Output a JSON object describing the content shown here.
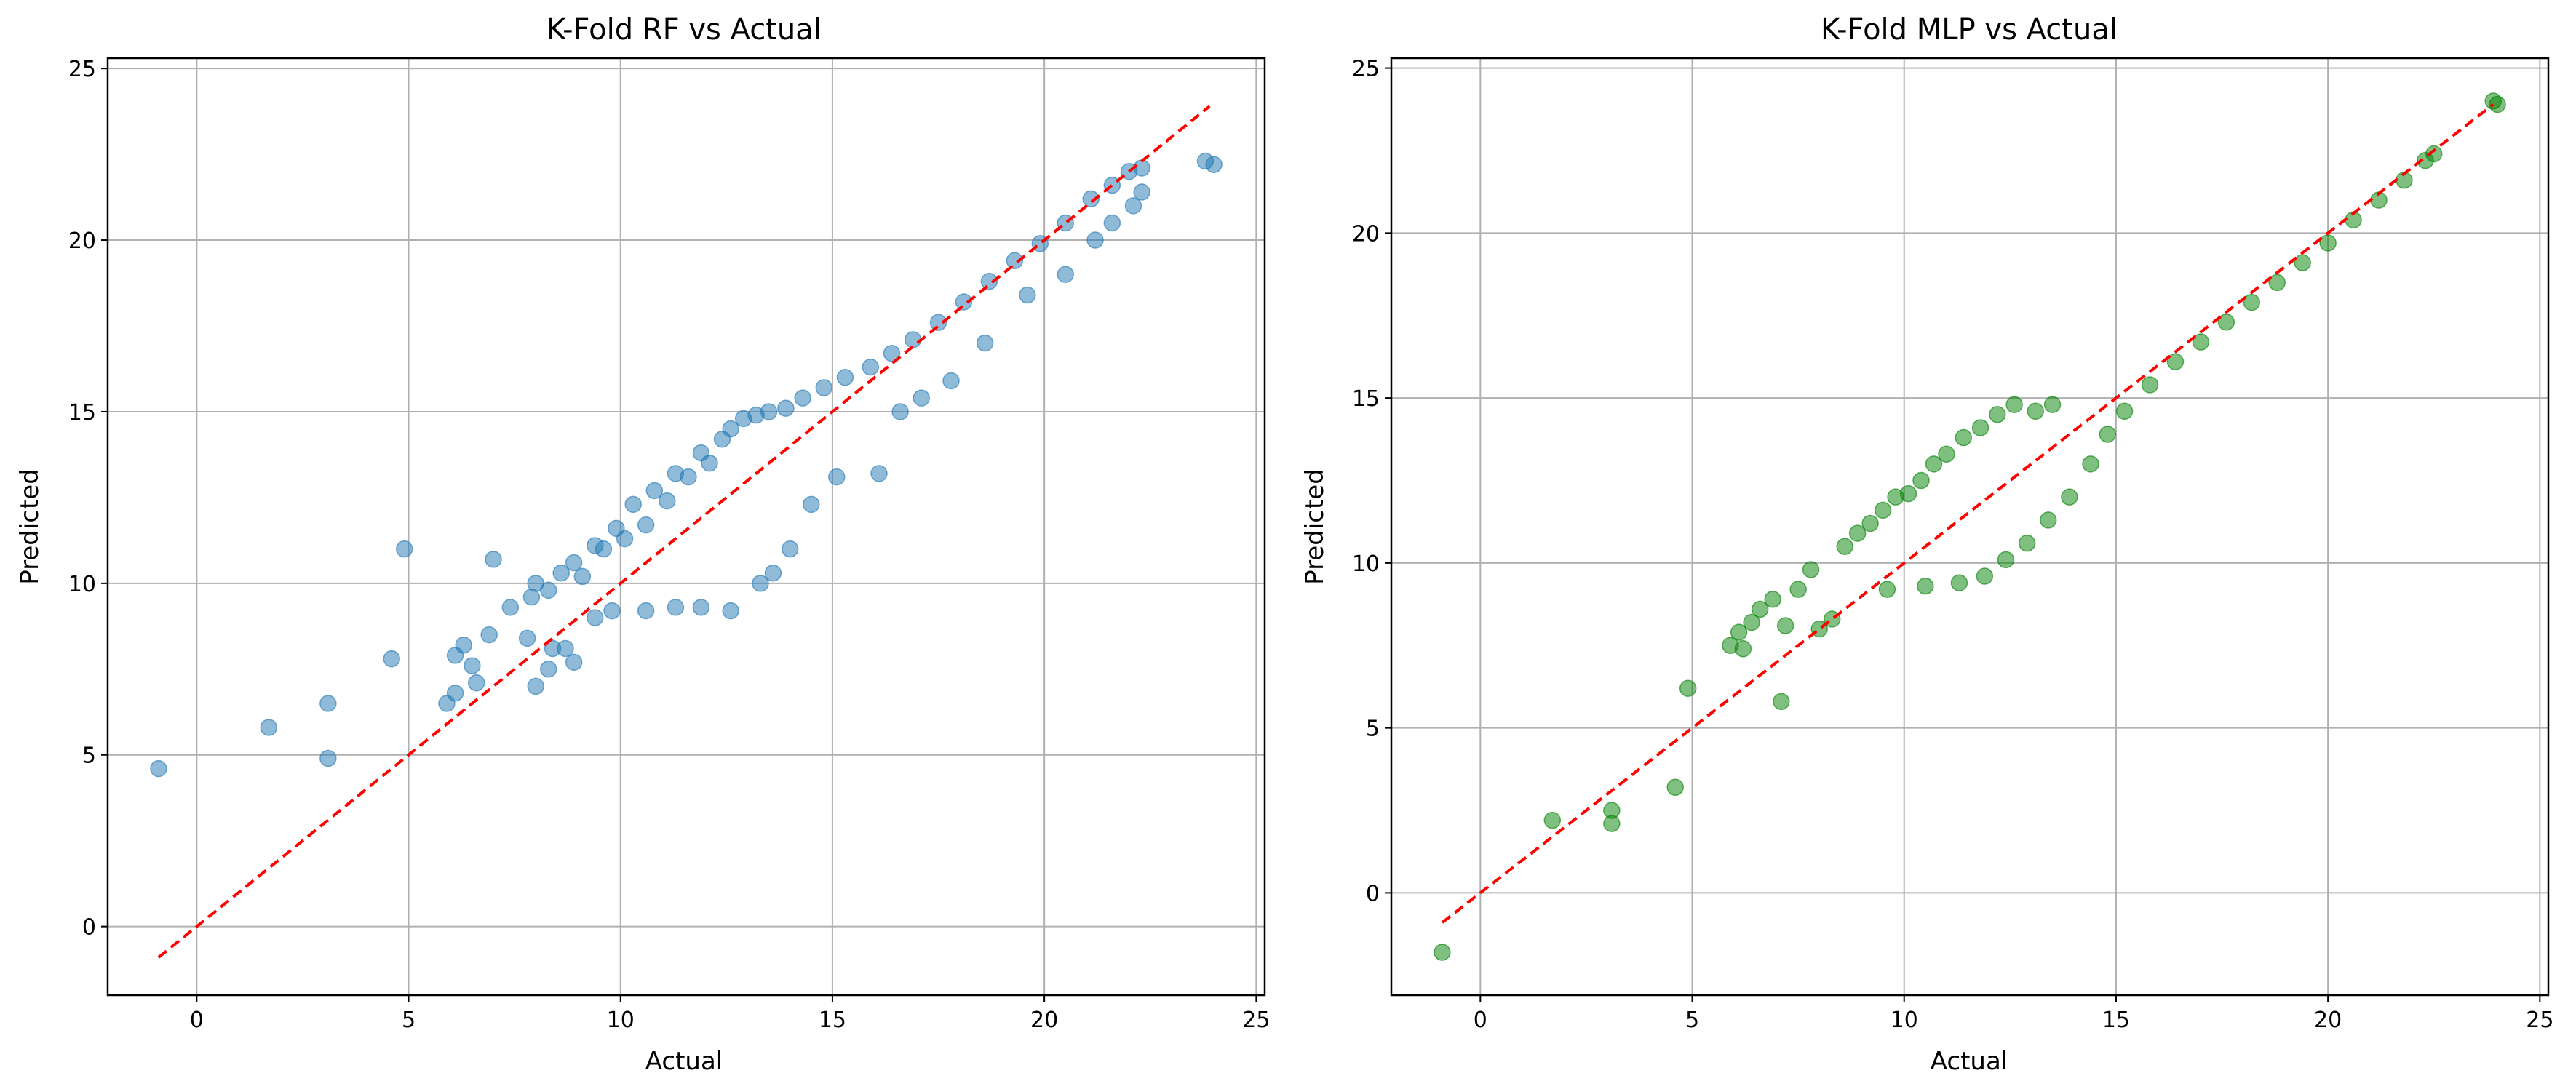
{
  "chart_data": [
    {
      "type": "scatter",
      "title": "K-Fold RF vs Actual",
      "xlabel": "Actual",
      "ylabel": "Predicted",
      "xlim": [
        -2.1,
        25.2
      ],
      "ylim": [
        -2.0,
        25.3
      ],
      "xticks": [
        0,
        5,
        10,
        15,
        20,
        25
      ],
      "yticks": [
        0,
        5,
        10,
        15,
        20,
        25
      ],
      "grid": true,
      "point_color": "#1f77b4",
      "point_alpha": 0.5,
      "reference_line": {
        "x": [
          -0.9,
          23.9
        ],
        "y": [
          -0.9,
          23.9
        ],
        "color": "#ff0000",
        "style": "dashed"
      },
      "points": [
        [
          -0.9,
          4.6
        ],
        [
          1.7,
          5.8
        ],
        [
          3.1,
          4.9
        ],
        [
          3.1,
          6.5
        ],
        [
          4.6,
          7.8
        ],
        [
          4.9,
          11.0
        ],
        [
          5.9,
          6.5
        ],
        [
          6.1,
          6.8
        ],
        [
          6.1,
          7.9
        ],
        [
          6.3,
          8.2
        ],
        [
          6.5,
          7.6
        ],
        [
          6.6,
          7.1
        ],
        [
          6.9,
          8.5
        ],
        [
          7.0,
          10.7
        ],
        [
          7.4,
          9.3
        ],
        [
          7.8,
          8.4
        ],
        [
          7.9,
          9.6
        ],
        [
          8.0,
          7.0
        ],
        [
          8.3,
          7.5
        ],
        [
          8.4,
          8.1
        ],
        [
          8.7,
          8.1
        ],
        [
          8.9,
          7.7
        ],
        [
          9.4,
          9.0
        ],
        [
          9.8,
          9.2
        ],
        [
          10.6,
          9.2
        ],
        [
          11.3,
          9.3
        ],
        [
          11.9,
          9.3
        ],
        [
          12.6,
          9.2
        ],
        [
          13.3,
          10.0
        ],
        [
          13.6,
          10.3
        ],
        [
          14.0,
          11.0
        ],
        [
          14.5,
          12.3
        ],
        [
          15.1,
          13.1
        ],
        [
          16.1,
          13.2
        ],
        [
          16.6,
          15.0
        ],
        [
          17.1,
          15.4
        ],
        [
          17.8,
          15.9
        ],
        [
          18.6,
          17.0
        ],
        [
          19.6,
          18.4
        ],
        [
          20.5,
          19.0
        ],
        [
          21.2,
          20.0
        ],
        [
          21.6,
          20.5
        ],
        [
          22.1,
          21.0
        ],
        [
          22.3,
          21.4
        ],
        [
          22.3,
          22.1
        ],
        [
          23.8,
          22.3
        ],
        [
          24.0,
          22.2
        ],
        [
          8.0,
          10.0
        ],
        [
          8.3,
          9.8
        ],
        [
          8.6,
          10.3
        ],
        [
          8.9,
          10.6
        ],
        [
          9.1,
          10.2
        ],
        [
          9.4,
          11.1
        ],
        [
          9.6,
          11.0
        ],
        [
          9.9,
          11.6
        ],
        [
          10.1,
          11.3
        ],
        [
          10.3,
          12.3
        ],
        [
          10.6,
          11.7
        ],
        [
          10.8,
          12.7
        ],
        [
          11.1,
          12.4
        ],
        [
          11.3,
          13.2
        ],
        [
          11.6,
          13.1
        ],
        [
          11.9,
          13.8
        ],
        [
          12.1,
          13.5
        ],
        [
          12.4,
          14.2
        ],
        [
          12.6,
          14.5
        ],
        [
          12.9,
          14.8
        ],
        [
          13.2,
          14.9
        ],
        [
          13.5,
          15.0
        ],
        [
          13.9,
          15.1
        ],
        [
          14.3,
          15.4
        ],
        [
          14.8,
          15.7
        ],
        [
          15.3,
          16.0
        ],
        [
          15.9,
          16.3
        ],
        [
          16.4,
          16.7
        ],
        [
          16.9,
          17.1
        ],
        [
          17.5,
          17.6
        ],
        [
          18.1,
          18.2
        ],
        [
          18.7,
          18.8
        ],
        [
          19.3,
          19.4
        ],
        [
          19.9,
          19.9
        ],
        [
          20.5,
          20.5
        ],
        [
          21.1,
          21.2
        ],
        [
          21.6,
          21.6
        ],
        [
          22.0,
          22.0
        ]
      ]
    },
    {
      "type": "scatter",
      "title": "K-Fold MLP vs Actual",
      "xlabel": "Actual",
      "ylabel": "Predicted",
      "xlim": [
        -2.1,
        25.2
      ],
      "ylim": [
        -3.1,
        25.3
      ],
      "xticks": [
        0,
        5,
        10,
        15,
        20,
        25
      ],
      "yticks": [
        0,
        5,
        10,
        15,
        20,
        25
      ],
      "grid": true,
      "point_color": "#008000",
      "point_alpha": 0.5,
      "reference_line": {
        "x": [
          -0.9,
          23.9
        ],
        "y": [
          -0.9,
          23.9
        ],
        "color": "#ff0000",
        "style": "dashed"
      },
      "points": [
        [
          -0.9,
          -1.8
        ],
        [
          1.7,
          2.2
        ],
        [
          3.1,
          2.1
        ],
        [
          3.1,
          2.5
        ],
        [
          4.6,
          3.2
        ],
        [
          4.9,
          6.2
        ],
        [
          7.1,
          5.8
        ],
        [
          5.9,
          7.5
        ],
        [
          6.1,
          7.9
        ],
        [
          6.2,
          7.4
        ],
        [
          6.4,
          8.2
        ],
        [
          6.6,
          8.6
        ],
        [
          6.9,
          8.9
        ],
        [
          7.2,
          8.1
        ],
        [
          7.5,
          9.2
        ],
        [
          7.8,
          9.8
        ],
        [
          8.0,
          8.0
        ],
        [
          8.3,
          8.3
        ],
        [
          8.6,
          10.5
        ],
        [
          8.9,
          10.9
        ],
        [
          9.2,
          11.2
        ],
        [
          9.5,
          11.6
        ],
        [
          9.8,
          12.0
        ],
        [
          10.1,
          12.1
        ],
        [
          10.4,
          12.5
        ],
        [
          10.7,
          13.0
        ],
        [
          11.0,
          13.3
        ],
        [
          11.4,
          13.8
        ],
        [
          11.8,
          14.1
        ],
        [
          12.2,
          14.5
        ],
        [
          12.6,
          14.8
        ],
        [
          13.1,
          14.6
        ],
        [
          13.5,
          14.8
        ],
        [
          9.6,
          9.2
        ],
        [
          10.5,
          9.3
        ],
        [
          11.3,
          9.4
        ],
        [
          11.9,
          9.6
        ],
        [
          12.4,
          10.1
        ],
        [
          12.9,
          10.6
        ],
        [
          13.4,
          11.3
        ],
        [
          13.9,
          12.0
        ],
        [
          14.4,
          13.0
        ],
        [
          14.8,
          13.9
        ],
        [
          15.2,
          14.6
        ],
        [
          15.8,
          15.4
        ],
        [
          16.4,
          16.1
        ],
        [
          17.0,
          16.7
        ],
        [
          17.6,
          17.3
        ],
        [
          18.2,
          17.9
        ],
        [
          18.8,
          18.5
        ],
        [
          19.4,
          19.1
        ],
        [
          20.0,
          19.7
        ],
        [
          20.6,
          20.4
        ],
        [
          21.2,
          21.0
        ],
        [
          21.8,
          21.6
        ],
        [
          22.3,
          22.2
        ],
        [
          22.5,
          22.4
        ],
        [
          23.9,
          24.0
        ],
        [
          24.0,
          23.9
        ]
      ]
    }
  ]
}
